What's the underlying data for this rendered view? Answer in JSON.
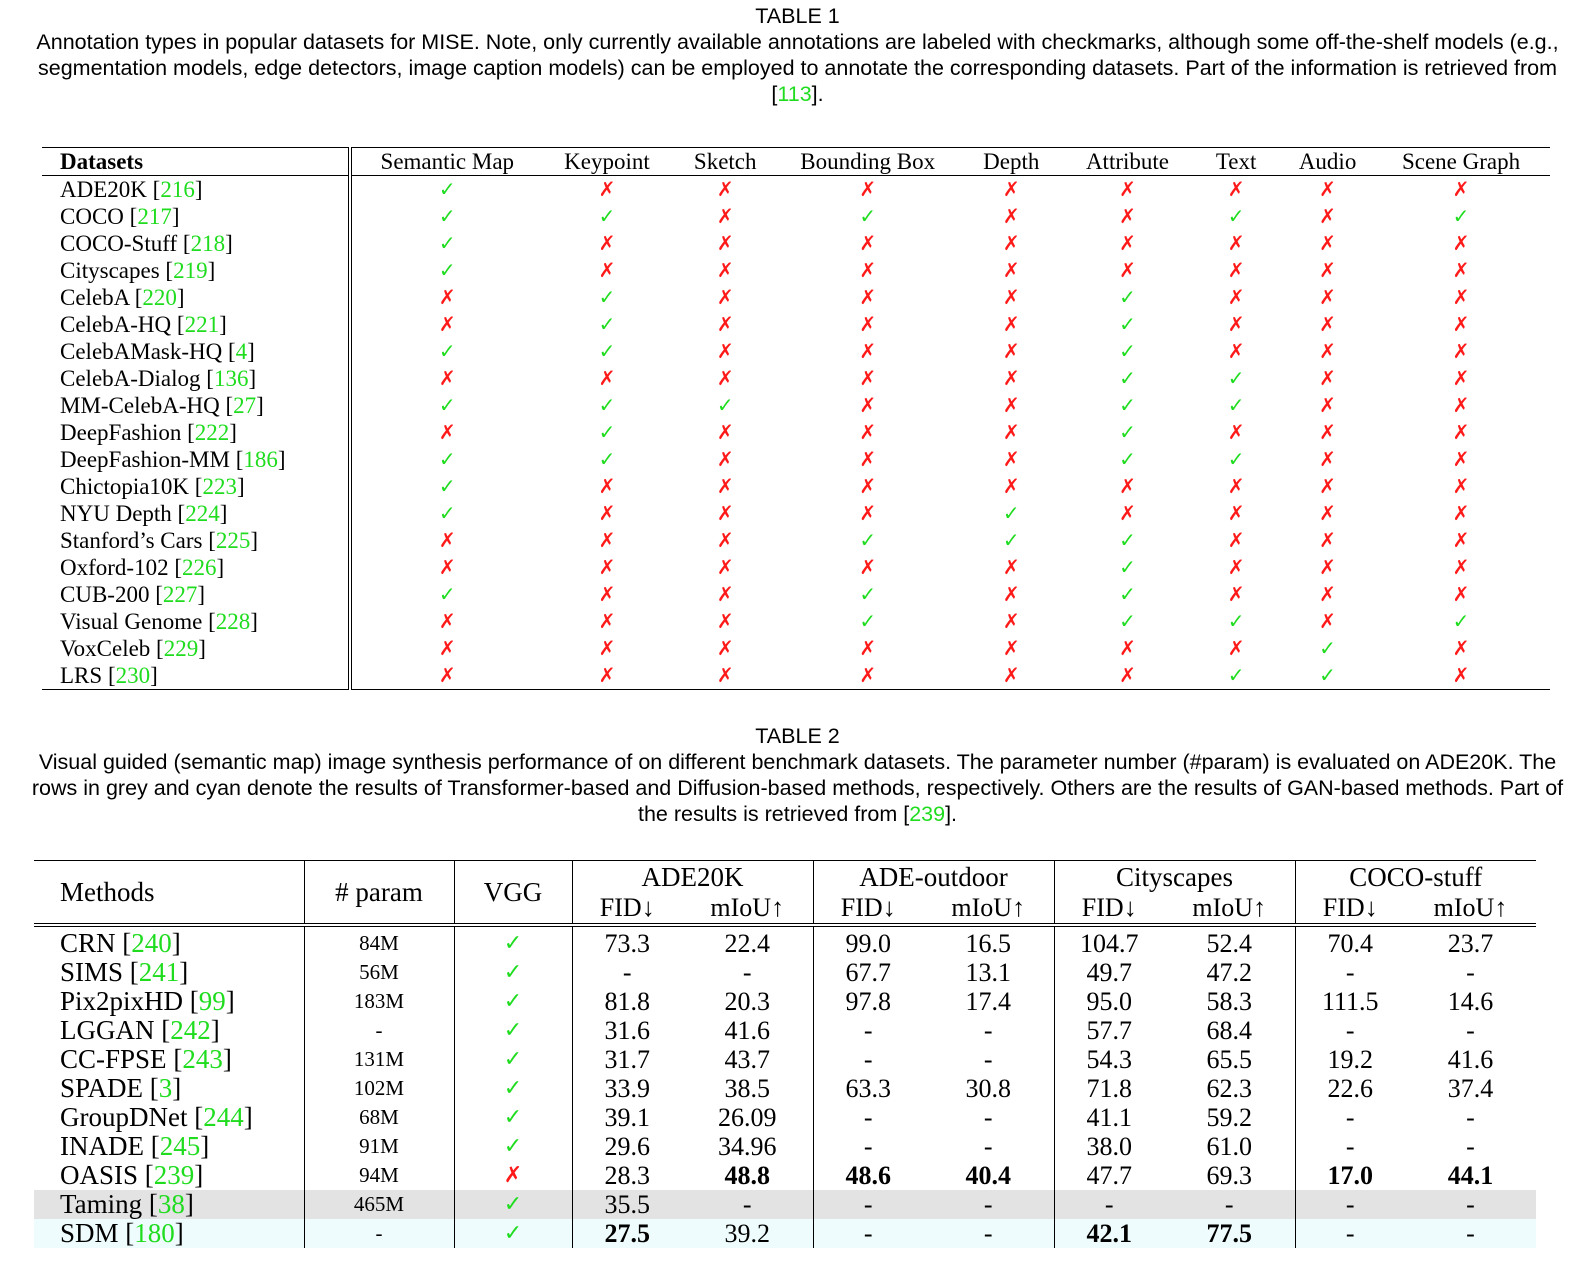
{
  "table1": {
    "title": "TABLE 1",
    "caption_text": "Annotation types in popular datasets for MISE. Note, only currently available annotations are labeled with checkmarks, although some off-the-shelf models (e.g., segmentation models, edge detectors, image caption models) can be employed to annotate the corresponding datasets. Part of the information is retrieved from [",
    "caption_ref": "113",
    "caption_end": "].",
    "headers": [
      "Datasets",
      "Semantic Map",
      "Keypoint",
      "Sketch",
      "Bounding Box",
      "Depth",
      "Attribute",
      "Text",
      "Audio",
      "Scene Graph"
    ],
    "check_symbol": "✓",
    "cross_symbol": "✗",
    "colors": {
      "check": "#1fdc1f",
      "cross": "#ff1a1a",
      "ref": "#1fdc1f"
    },
    "rows": [
      {
        "name": "ADE20K",
        "ref": "216",
        "marks": [
          1,
          0,
          0,
          0,
          0,
          0,
          0,
          0,
          0
        ]
      },
      {
        "name": "COCO",
        "ref": "217",
        "marks": [
          1,
          1,
          0,
          1,
          0,
          0,
          1,
          0,
          1
        ]
      },
      {
        "name": "COCO-Stuff",
        "ref": "218",
        "marks": [
          1,
          0,
          0,
          0,
          0,
          0,
          0,
          0,
          0
        ]
      },
      {
        "name": "Cityscapes",
        "ref": "219",
        "marks": [
          1,
          0,
          0,
          0,
          0,
          0,
          0,
          0,
          0
        ]
      },
      {
        "name": "CelebA",
        "ref": "220",
        "marks": [
          0,
          1,
          0,
          0,
          0,
          1,
          0,
          0,
          0
        ]
      },
      {
        "name": "CelebA-HQ",
        "ref": "221",
        "marks": [
          0,
          1,
          0,
          0,
          0,
          1,
          0,
          0,
          0
        ]
      },
      {
        "name": "CelebAMask-HQ",
        "ref": "4",
        "marks": [
          1,
          1,
          0,
          0,
          0,
          1,
          0,
          0,
          0
        ]
      },
      {
        "name": "CelebA-Dialog",
        "ref": "136",
        "marks": [
          0,
          0,
          0,
          0,
          0,
          1,
          1,
          0,
          0
        ]
      },
      {
        "name": "MM-CelebA-HQ",
        "ref": "27",
        "marks": [
          1,
          1,
          1,
          0,
          0,
          1,
          1,
          0,
          0
        ]
      },
      {
        "name": "DeepFashion",
        "ref": "222",
        "marks": [
          0,
          1,
          0,
          0,
          0,
          1,
          0,
          0,
          0
        ]
      },
      {
        "name": "DeepFashion-MM",
        "ref": "186",
        "marks": [
          1,
          1,
          0,
          0,
          0,
          1,
          1,
          0,
          0
        ]
      },
      {
        "name": "Chictopia10K",
        "ref": "223",
        "marks": [
          1,
          0,
          0,
          0,
          0,
          0,
          0,
          0,
          0
        ]
      },
      {
        "name": "NYU Depth",
        "ref": "224",
        "marks": [
          1,
          0,
          0,
          0,
          1,
          0,
          0,
          0,
          0
        ]
      },
      {
        "name": "Stanford’s Cars",
        "ref": "225",
        "marks": [
          0,
          0,
          0,
          1,
          1,
          1,
          0,
          0,
          0
        ]
      },
      {
        "name": "Oxford-102",
        "ref": "226",
        "marks": [
          0,
          0,
          0,
          0,
          0,
          1,
          0,
          0,
          0
        ]
      },
      {
        "name": "CUB-200",
        "ref": "227",
        "marks": [
          1,
          0,
          0,
          1,
          0,
          1,
          0,
          0,
          0
        ]
      },
      {
        "name": "Visual Genome",
        "ref": "228",
        "marks": [
          0,
          0,
          0,
          1,
          0,
          1,
          1,
          0,
          1
        ]
      },
      {
        "name": "VoxCeleb",
        "ref": "229",
        "marks": [
          0,
          0,
          0,
          0,
          0,
          0,
          0,
          1,
          0
        ]
      },
      {
        "name": "LRS",
        "ref": "230",
        "marks": [
          0,
          0,
          0,
          0,
          0,
          0,
          1,
          1,
          0
        ]
      }
    ]
  },
  "table2": {
    "title": "TABLE 2",
    "caption_text": "Visual guided (semantic map) image synthesis performance of on different benchmark datasets. The parameter number (#param) is evaluated on ADE20K. The rows in grey and cyan denote the results of Transformer-based and Diffusion-based methods, respectively. Others are the results of GAN-based methods. Part of the results is retrieved from [",
    "caption_ref": "239",
    "caption_end": "].",
    "headers": {
      "methods": "Methods",
      "param": "# param",
      "vgg": "VGG",
      "groups": [
        "ADE20K",
        "ADE-outdoor",
        "Cityscapes",
        "COCO-stuff"
      ],
      "fid": "FID↓",
      "miou": "mIoU↑"
    },
    "colors": {
      "grey_row": "#e3e3e3",
      "cyan_row": "#eefcfd"
    },
    "rows": [
      {
        "method": "CRN",
        "ref": "240",
        "param": "84M",
        "vgg": "✓",
        "style": "",
        "values": [
          "73.3",
          "22.4",
          "99.0",
          "16.5",
          "104.7",
          "52.4",
          "70.4",
          "23.7"
        ],
        "bold": []
      },
      {
        "method": "SIMS",
        "ref": "241",
        "param": "56M",
        "vgg": "✓",
        "style": "",
        "values": [
          "-",
          "-",
          "67.7",
          "13.1",
          "49.7",
          "47.2",
          "-",
          "-"
        ],
        "bold": []
      },
      {
        "method": "Pix2pixHD",
        "ref": "99",
        "param": "183M",
        "vgg": "✓",
        "style": "",
        "values": [
          "81.8",
          "20.3",
          "97.8",
          "17.4",
          "95.0",
          "58.3",
          "111.5",
          "14.6"
        ],
        "bold": []
      },
      {
        "method": "LGGAN",
        "ref": "242",
        "param": "-",
        "vgg": "✓",
        "style": "",
        "values": [
          "31.6",
          "41.6",
          "-",
          "-",
          "57.7",
          "68.4",
          "-",
          "-"
        ],
        "bold": []
      },
      {
        "method": "CC-FPSE",
        "ref": "243",
        "param": "131M",
        "vgg": "✓",
        "style": "",
        "values": [
          "31.7",
          "43.7",
          "-",
          "-",
          "54.3",
          "65.5",
          "19.2",
          "41.6"
        ],
        "bold": []
      },
      {
        "method": "SPADE",
        "ref": "3",
        "param": "102M",
        "vgg": "✓",
        "style": "",
        "values": [
          "33.9",
          "38.5",
          "63.3",
          "30.8",
          "71.8",
          "62.3",
          "22.6",
          "37.4"
        ],
        "bold": []
      },
      {
        "method": "GroupDNet",
        "ref": "244",
        "param": "68M",
        "vgg": "✓",
        "style": "",
        "values": [
          "39.1",
          "26.09",
          "-",
          "-",
          "41.1",
          "59.2",
          "-",
          "-"
        ],
        "bold": []
      },
      {
        "method": "INADE",
        "ref": "245",
        "param": "91M",
        "vgg": "✓",
        "style": "",
        "values": [
          "29.6",
          "34.96",
          "-",
          "-",
          "38.0",
          "61.0",
          "-",
          "-"
        ],
        "bold": []
      },
      {
        "method": "OASIS",
        "ref": "239",
        "param": "94M",
        "vgg": "✗",
        "style": "",
        "values": [
          "28.3",
          "48.8",
          "48.6",
          "40.4",
          "47.7",
          "69.3",
          "17.0",
          "44.1"
        ],
        "bold": [
          1,
          2,
          3,
          6,
          7
        ]
      },
      {
        "method": "Taming",
        "ref": "38",
        "param": "465M",
        "vgg": "✓",
        "style": "grey",
        "values": [
          "35.5",
          "-",
          "-",
          "-",
          "-",
          "-",
          "-",
          "-"
        ],
        "bold": []
      },
      {
        "method": "SDM",
        "ref": "180",
        "param": "-",
        "vgg": "✓",
        "style": "cyan",
        "values": [
          "27.5",
          "39.2",
          "-",
          "-",
          "42.1",
          "77.5",
          "-",
          "-"
        ],
        "bold": [
          0,
          4,
          5
        ]
      }
    ]
  }
}
